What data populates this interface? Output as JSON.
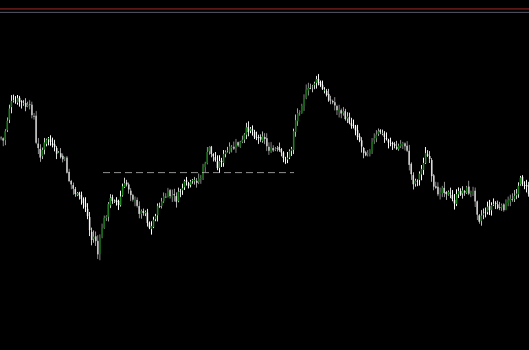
{
  "colors": {
    "background": "#000000",
    "bull_candle": "#1f8f1f",
    "bear_candle": "#ffffff",
    "wick": "#ffffff",
    "top_line_red": "#c83232",
    "top_line_gray": "#8a8aa0",
    "dashed_level": "#e6e6e6"
  },
  "chart_data": {
    "type": "candlestick",
    "y_direction": "price",
    "ylim": [
      0,
      509
    ],
    "grid": false,
    "legend": "none",
    "close_path": [
      [
        0,
        200
      ],
      [
        4,
        205
      ],
      [
        9,
        180
      ],
      [
        14,
        150
      ],
      [
        20,
        150
      ],
      [
        26,
        145
      ],
      [
        32,
        152
      ],
      [
        38,
        155
      ],
      [
        44,
        158
      ],
      [
        49,
        170
      ],
      [
        52,
        210
      ],
      [
        58,
        225
      ],
      [
        64,
        210
      ],
      [
        70,
        200
      ],
      [
        76,
        215
      ],
      [
        82,
        222
      ],
      [
        88,
        228
      ],
      [
        94,
        235
      ],
      [
        100,
        262
      ],
      [
        106,
        275
      ],
      [
        112,
        285
      ],
      [
        118,
        290
      ],
      [
        124,
        300
      ],
      [
        128,
        320
      ],
      [
        132,
        350
      ],
      [
        138,
        342
      ],
      [
        142,
        370
      ],
      [
        148,
        330
      ],
      [
        154,
        310
      ],
      [
        160,
        290
      ],
      [
        166,
        288
      ],
      [
        172,
        300
      ],
      [
        178,
        272
      ],
      [
        184,
        268
      ],
      [
        188,
        275
      ],
      [
        192,
        285
      ],
      [
        198,
        300
      ],
      [
        204,
        310
      ],
      [
        210,
        303
      ],
      [
        216,
        330
      ],
      [
        220,
        330
      ],
      [
        226,
        310
      ],
      [
        232,
        298
      ],
      [
        238,
        288
      ],
      [
        244,
        283
      ],
      [
        250,
        285
      ],
      [
        256,
        290
      ],
      [
        262,
        277
      ],
      [
        268,
        268
      ],
      [
        274,
        270
      ],
      [
        280,
        266
      ],
      [
        286,
        262
      ],
      [
        292,
        258
      ],
      [
        298,
        235
      ],
      [
        304,
        215
      ],
      [
        310,
        228
      ],
      [
        316,
        240
      ],
      [
        322,
        232
      ],
      [
        328,
        222
      ],
      [
        334,
        218
      ],
      [
        340,
        215
      ],
      [
        346,
        210
      ],
      [
        352,
        206
      ],
      [
        358,
        190
      ],
      [
        364,
        185
      ],
      [
        370,
        195
      ],
      [
        376,
        202
      ],
      [
        382,
        195
      ],
      [
        388,
        212
      ],
      [
        394,
        220
      ],
      [
        400,
        218
      ],
      [
        406,
        220
      ],
      [
        412,
        232
      ],
      [
        418,
        228
      ],
      [
        424,
        215
      ],
      [
        428,
        180
      ],
      [
        432,
        168
      ],
      [
        438,
        152
      ],
      [
        444,
        135
      ],
      [
        450,
        130
      ],
      [
        456,
        120
      ],
      [
        462,
        118
      ],
      [
        468,
        130
      ],
      [
        474,
        135
      ],
      [
        480,
        145
      ],
      [
        486,
        152
      ],
      [
        492,
        160
      ],
      [
        498,
        165
      ],
      [
        504,
        172
      ],
      [
        510,
        178
      ],
      [
        516,
        185
      ],
      [
        522,
        200
      ],
      [
        528,
        220
      ],
      [
        534,
        222
      ],
      [
        540,
        210
      ],
      [
        546,
        200
      ],
      [
        552,
        190
      ],
      [
        558,
        198
      ],
      [
        564,
        205
      ],
      [
        570,
        208
      ],
      [
        576,
        218
      ],
      [
        582,
        210
      ],
      [
        588,
        205
      ],
      [
        594,
        232
      ],
      [
        600,
        265
      ],
      [
        606,
        262
      ],
      [
        612,
        250
      ],
      [
        618,
        225
      ],
      [
        624,
        228
      ],
      [
        630,
        275
      ],
      [
        636,
        280
      ],
      [
        642,
        272
      ],
      [
        648,
        278
      ],
      [
        654,
        283
      ],
      [
        660,
        295
      ],
      [
        666,
        282
      ],
      [
        672,
        278
      ],
      [
        678,
        275
      ],
      [
        684,
        280
      ],
      [
        690,
        282
      ],
      [
        696,
        320
      ],
      [
        702,
        310
      ],
      [
        708,
        305
      ],
      [
        714,
        300
      ],
      [
        720,
        295
      ],
      [
        726,
        305
      ],
      [
        732,
        302
      ],
      [
        738,
        295
      ],
      [
        744,
        290
      ],
      [
        750,
        280
      ],
      [
        756,
        262
      ],
      [
        762,
        265
      ],
      [
        766,
        275
      ],
      [
        770,
        282
      ]
    ],
    "horizontal_levels": [
      {
        "style": "dashed",
        "x_start": 150,
        "x_end": 428,
        "y": 251
      }
    ]
  }
}
